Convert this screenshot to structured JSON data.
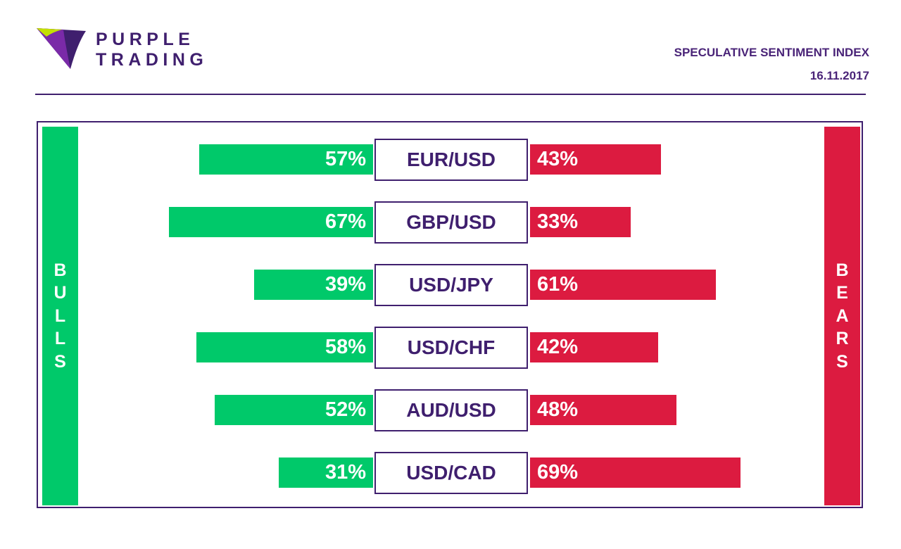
{
  "brand": {
    "line1": "PURPLE",
    "line2": "TRADING"
  },
  "header": {
    "title": "SPECULATIVE SENTIMENT INDEX",
    "date": "16.11.2017"
  },
  "colors": {
    "bull": "#00c96a",
    "bear": "#dc1b40",
    "brand": "#3f1f6e"
  },
  "chart_data": {
    "type": "bar",
    "orientation": "horizontal diverging",
    "legend": {
      "left": "BULLS",
      "right": "BEARS"
    },
    "categories": [
      "EUR/USD",
      "GBP/USD",
      "USD/JPY",
      "USD/CHF",
      "AUD/USD",
      "USD/CAD"
    ],
    "series": [
      {
        "name": "BULLS",
        "values": [
          57,
          67,
          39,
          58,
          52,
          31
        ],
        "labels": [
          "57%",
          "67%",
          "39%",
          "58%",
          "52%",
          "31%"
        ]
      },
      {
        "name": "BEARS",
        "values": [
          43,
          33,
          61,
          42,
          48,
          69
        ],
        "labels": [
          "43%",
          "33%",
          "61%",
          "42%",
          "48%",
          "69%"
        ]
      }
    ]
  }
}
